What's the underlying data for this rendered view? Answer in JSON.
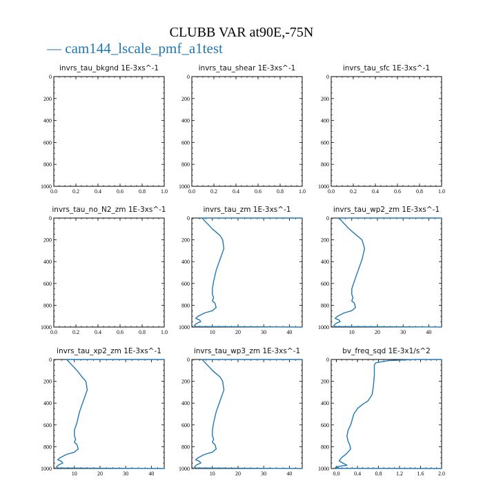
{
  "figure": {
    "title": "CLUBB VAR at90E,-75N",
    "legend": [
      {
        "label": "cam144_lscale_pmf_a1test",
        "color": "#1f77b4"
      }
    ]
  },
  "chart_data": [
    {
      "type": "line",
      "title": "invrs_tau_bkgnd",
      "unit": "1E-3xs^-1",
      "xlim": [
        0,
        1
      ],
      "ylim": [
        1000,
        0
      ],
      "xticks": [
        "0.0",
        "0.2",
        "0.4",
        "0.6",
        "0.8",
        "1.0"
      ],
      "xtick_values": [
        0,
        0.2,
        0.4,
        0.6,
        0.8,
        1.0
      ],
      "yticks": [
        "0",
        "200",
        "400",
        "600",
        "800",
        "1000"
      ],
      "ytick_values": [
        0,
        200,
        400,
        600,
        800,
        1000
      ],
      "series": [
        {
          "color": "#1f77b4",
          "x": [],
          "y": []
        }
      ]
    },
    {
      "type": "line",
      "title": "invrs_tau_shear",
      "unit": "1E-3xs^-1",
      "xlim": [
        0,
        1
      ],
      "ylim": [
        1000,
        0
      ],
      "xticks": [
        "0.0",
        "0.2",
        "0.4",
        "0.6",
        "0.8",
        "1.0"
      ],
      "xtick_values": [
        0,
        0.2,
        0.4,
        0.6,
        0.8,
        1.0
      ],
      "yticks": [
        "0",
        "200",
        "400",
        "600",
        "800",
        "1000"
      ],
      "ytick_values": [
        0,
        200,
        400,
        600,
        800,
        1000
      ],
      "series": [
        {
          "color": "#1f77b4",
          "x": [],
          "y": []
        }
      ]
    },
    {
      "type": "line",
      "title": "invrs_tau_sfc",
      "unit": "1E-3xs^-1",
      "xlim": [
        0,
        1
      ],
      "ylim": [
        1000,
        0
      ],
      "xticks": [
        "0.0",
        "0.2",
        "0.4",
        "0.6",
        "0.8",
        "1.0"
      ],
      "xtick_values": [
        0,
        0.2,
        0.4,
        0.6,
        0.8,
        1.0
      ],
      "yticks": [
        "0",
        "200",
        "400",
        "600",
        "800",
        "1000"
      ],
      "ytick_values": [
        0,
        200,
        400,
        600,
        800,
        1000
      ],
      "series": [
        {
          "color": "#1f77b4",
          "x": [],
          "y": []
        }
      ]
    },
    {
      "type": "line",
      "title": "invrs_tau_no_N2_zm",
      "unit": "1E-3xs^-1",
      "xlim": [
        0,
        1
      ],
      "ylim": [
        1000,
        0
      ],
      "xticks": [
        "0.0",
        "0.2",
        "0.4",
        "0.6",
        "0.8",
        "1.0"
      ],
      "xtick_values": [
        0,
        0.2,
        0.4,
        0.6,
        0.8,
        1.0
      ],
      "yticks": [
        "0",
        "200",
        "400",
        "600",
        "800",
        "1000"
      ],
      "ytick_values": [
        0,
        200,
        400,
        600,
        800,
        1000
      ],
      "series": [
        {
          "color": "#1f77b4",
          "x": [],
          "y": []
        }
      ]
    },
    {
      "type": "line",
      "title": "invrs_tau_zm",
      "unit": "1E-3xs^-1",
      "xlim": [
        2,
        45
      ],
      "ylim": [
        1000,
        0
      ],
      "xticks": [
        "10",
        "20",
        "30",
        "40"
      ],
      "xtick_values": [
        10,
        20,
        30,
        40
      ],
      "yticks": [
        "0",
        "200",
        "400",
        "600",
        "800",
        "1000"
      ],
      "ytick_values": [
        0,
        200,
        400,
        600,
        800,
        1000
      ],
      "series": [
        {
          "color": "#1f77b4",
          "x": [
            45,
            6,
            10,
            13,
            14,
            14.5,
            13,
            11.5,
            10.5,
            10,
            10,
            10.5,
            10,
            11,
            11.5,
            10,
            7,
            4.5,
            3.5,
            5,
            5.5,
            4,
            3,
            3.5,
            45
          ],
          "y": [
            0,
            0,
            100,
            160,
            200,
            280,
            380,
            480,
            580,
            650,
            700,
            730,
            760,
            780,
            820,
            850,
            870,
            900,
            920,
            935,
            950,
            965,
            985,
            995,
            1000
          ]
        }
      ]
    },
    {
      "type": "line",
      "title": "invrs_tau_wp2_zm",
      "unit": "1E-3xs^-1",
      "xlim": [
        2,
        45
      ],
      "ylim": [
        1000,
        0
      ],
      "xticks": [
        "10",
        "20",
        "30",
        "40"
      ],
      "xtick_values": [
        10,
        20,
        30,
        40
      ],
      "yticks": [
        "0",
        "200",
        "400",
        "600",
        "800",
        "1000"
      ],
      "ytick_values": [
        0,
        200,
        400,
        600,
        800,
        1000
      ],
      "series": [
        {
          "color": "#1f77b4",
          "x": [
            45,
            5,
            9,
            12,
            14,
            15,
            14,
            12.5,
            11,
            10,
            10,
            10.5,
            10,
            11,
            11.5,
            10,
            7,
            4.5,
            3.5,
            5,
            5.5,
            4,
            3,
            3.5,
            45
          ],
          "y": [
            0,
            0,
            100,
            160,
            200,
            280,
            380,
            480,
            580,
            650,
            700,
            730,
            760,
            780,
            820,
            850,
            870,
            900,
            920,
            935,
            950,
            965,
            985,
            995,
            1000
          ]
        }
      ]
    },
    {
      "type": "line",
      "title": "invrs_tau_xp2_zm",
      "unit": "1E-3xs^-1",
      "xlim": [
        2,
        45
      ],
      "ylim": [
        1000,
        0
      ],
      "xticks": [
        "10",
        "20",
        "30",
        "40"
      ],
      "xtick_values": [
        10,
        20,
        30,
        40
      ],
      "yticks": [
        "0",
        "200",
        "400",
        "600",
        "800",
        "1000"
      ],
      "ytick_values": [
        0,
        200,
        400,
        600,
        800,
        1000
      ],
      "series": [
        {
          "color": "#1f77b4",
          "x": [
            45,
            7,
            11,
            13,
            14.5,
            15,
            13.5,
            12,
            11,
            10,
            10,
            10.5,
            10,
            11,
            11.5,
            10,
            7,
            4.5,
            3.5,
            5,
            5.5,
            4,
            3,
            3.5,
            45
          ],
          "y": [
            0,
            0,
            100,
            160,
            200,
            280,
            380,
            480,
            580,
            650,
            700,
            730,
            760,
            780,
            820,
            850,
            870,
            900,
            920,
            935,
            950,
            965,
            985,
            995,
            1000
          ]
        }
      ]
    },
    {
      "type": "line",
      "title": "invrs_tau_wp3_zm",
      "unit": "1E-3xs^-1",
      "xlim": [
        2,
        45
      ],
      "ylim": [
        1000,
        0
      ],
      "xticks": [
        "10",
        "20",
        "30",
        "40"
      ],
      "xtick_values": [
        10,
        20,
        30,
        40
      ],
      "yticks": [
        "0",
        "200",
        "400",
        "600",
        "800",
        "1000"
      ],
      "ytick_values": [
        0,
        200,
        400,
        600,
        800,
        1000
      ],
      "series": [
        {
          "color": "#1f77b4",
          "x": [
            45,
            6,
            10,
            13,
            14,
            14.5,
            13,
            11.5,
            10.5,
            10,
            10,
            10.5,
            10,
            11,
            11.5,
            10,
            7,
            4.5,
            3.5,
            5,
            5.5,
            4,
            3,
            3.5,
            45
          ],
          "y": [
            0,
            0,
            100,
            160,
            200,
            280,
            380,
            480,
            580,
            650,
            700,
            730,
            760,
            780,
            820,
            850,
            870,
            900,
            920,
            935,
            950,
            965,
            985,
            995,
            1000
          ]
        }
      ]
    },
    {
      "type": "line",
      "title": "bv_freq_sqd",
      "unit": "1E-3x1/s^2",
      "xlim": [
        -0.1,
        2.0
      ],
      "ylim": [
        1000,
        0
      ],
      "xticks": [
        "0.0",
        "0.4",
        "0.8",
        "1.2",
        "1.6",
        "2.0"
      ],
      "xtick_values": [
        0,
        0.4,
        0.8,
        1.2,
        1.6,
        2.0
      ],
      "yticks": [
        "0",
        "200",
        "400",
        "600",
        "800",
        "1000"
      ],
      "ytick_values": [
        0,
        200,
        400,
        600,
        800,
        1000
      ],
      "series": [
        {
          "color": "#1f77b4",
          "x": [
            2.0,
            1.5,
            1.0,
            0.75,
            0.72,
            0.72,
            0.7,
            0.68,
            0.6,
            0.5,
            0.4,
            0.33,
            0.3,
            0.27,
            0.22,
            0.2,
            0.22,
            0.25,
            0.27,
            0.2,
            0.1,
            0.05,
            0.12,
            0.2,
            0.05,
            -0.02,
            0.05,
            0.0,
            2.0
          ],
          "y": [
            0,
            0,
            10,
            30,
            50,
            150,
            250,
            320,
            380,
            410,
            450,
            500,
            550,
            600,
            650,
            700,
            750,
            780,
            820,
            860,
            900,
            930,
            950,
            970,
            980,
            990,
            995,
            998,
            1000
          ]
        }
      ]
    }
  ]
}
